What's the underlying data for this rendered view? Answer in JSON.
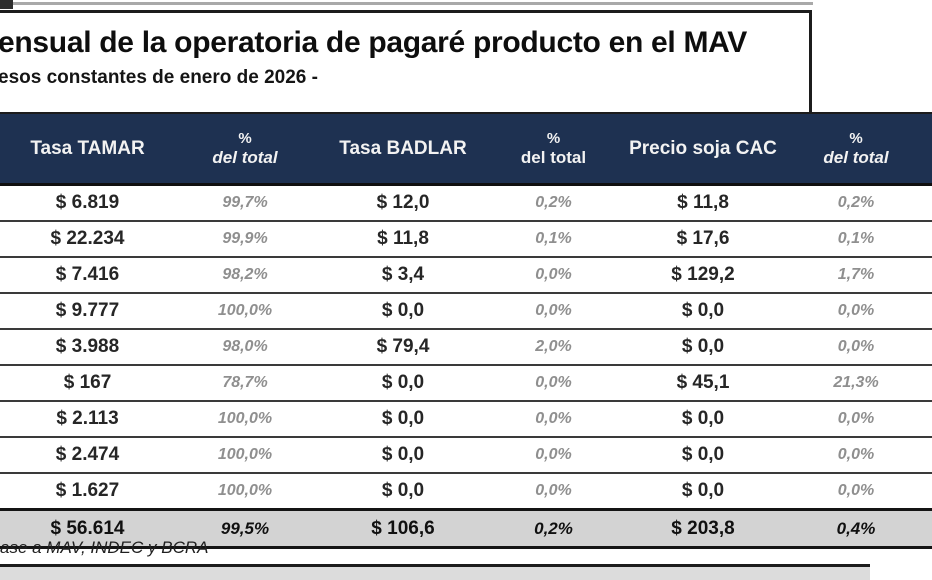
{
  "colors": {
    "header_bg": "#1e3151",
    "header_text": "#f2f2f2",
    "total_row_bg": "#d3d3d3",
    "value_text": "#262626",
    "percent_text": "#8f8f8f",
    "border": "#1c1c1c"
  },
  "chart_data": {
    "type": "table",
    "title": "ensual de la operatoria de pagaré producto en el MAV",
    "subtitle": "esos constantes de enero de 2026 -",
    "source_note": "ase a MAV, INDEC y BCRA",
    "header_cells": [
      {
        "label": "Tasa TAMAR",
        "sub": ""
      },
      {
        "label": "%",
        "sub": "del total"
      },
      {
        "label": "Tasa BADLAR",
        "sub": ""
      },
      {
        "label": "%",
        "sub": "del total"
      },
      {
        "label": "Precio soja CAC",
        "sub": ""
      },
      {
        "label": "%",
        "sub": "del total"
      }
    ],
    "rows": [
      [
        "$ 6.819",
        "99,7%",
        "$ 12,0",
        "0,2%",
        "$ 11,8",
        "0,2%"
      ],
      [
        "$ 22.234",
        "99,9%",
        "$ 11,8",
        "0,1%",
        "$ 17,6",
        "0,1%"
      ],
      [
        "$ 7.416",
        "98,2%",
        "$ 3,4",
        "0,0%",
        "$ 129,2",
        "1,7%"
      ],
      [
        "$ 9.777",
        "100,0%",
        "$ 0,0",
        "0,0%",
        "$ 0,0",
        "0,0%"
      ],
      [
        "$ 3.988",
        "98,0%",
        "$ 79,4",
        "2,0%",
        "$ 0,0",
        "0,0%"
      ],
      [
        "$ 167",
        "78,7%",
        "$ 0,0",
        "0,0%",
        "$ 45,1",
        "21,3%"
      ],
      [
        "$ 2.113",
        "100,0%",
        "$ 0,0",
        "0,0%",
        "$ 0,0",
        "0,0%"
      ],
      [
        "$ 2.474",
        "100,0%",
        "$ 0,0",
        "0,0%",
        "$ 0,0",
        "0,0%"
      ],
      [
        "$ 1.627",
        "100,0%",
        "$ 0,0",
        "0,0%",
        "$ 0,0",
        "0,0%"
      ]
    ],
    "total_row": [
      "$ 56.614",
      "99,5%",
      "$ 106,6",
      "0,2%",
      "$ 203,8",
      "0,4%"
    ]
  }
}
